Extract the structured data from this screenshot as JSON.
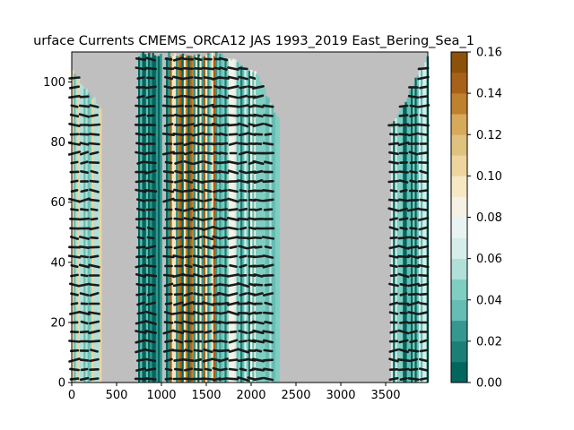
{
  "chart_data": {
    "type": "heatmap",
    "title": "urface Currents CMEMS_ORCA12 JAS 1993_2019 East_Bering_Sea_1",
    "xlabel": "",
    "ylabel": "",
    "xlim": [
      0,
      3970
    ],
    "ylim": [
      0,
      110
    ],
    "x_ticks": [
      0,
      500,
      1000,
      1500,
      2000,
      2500,
      3000,
      3500
    ],
    "y_ticks": [
      0,
      20,
      40,
      60,
      80,
      100
    ],
    "land_color": "#bfbfbf",
    "colorbar": {
      "min": 0.0,
      "max": 0.16,
      "ticks": [
        "0.00",
        "0.02",
        "0.04",
        "0.06",
        "0.08",
        "0.10",
        "0.12",
        "0.14",
        "0.16"
      ],
      "colors": [
        "#01665e",
        "#1b7f76",
        "#35978f",
        "#66bdb3",
        "#80cdc1",
        "#b1e0d9",
        "#d5eeea",
        "#e9f3f1",
        "#f5f1e4",
        "#f6e8c3",
        "#eed59f",
        "#dfc27d",
        "#d7a95b",
        "#bf812d",
        "#a76118",
        "#8c510a"
      ]
    },
    "regions": [
      {
        "x_start": 0,
        "x_end": 330,
        "top_start": 104,
        "top_end": 92,
        "color_mix": [
          3,
          4,
          5,
          10
        ]
      },
      {
        "x_start": 740,
        "x_end": 990,
        "top_start": 110,
        "top_end": 110,
        "color_mix": [
          0,
          1,
          2,
          3
        ]
      },
      {
        "x_start": 1050,
        "x_end": 1660,
        "top_start": 110,
        "top_end": 110,
        "color_mix": [
          0,
          2,
          4,
          9,
          13,
          14
        ]
      },
      {
        "x_start": 1660,
        "x_end": 2050,
        "top_start": 110,
        "top_end": 104,
        "color_mix": [
          1,
          3,
          4,
          6,
          8
        ]
      },
      {
        "x_start": 2050,
        "x_end": 2300,
        "top_start": 104,
        "top_end": 88,
        "color_mix": [
          3,
          4,
          5
        ]
      },
      {
        "x_start": 3560,
        "x_end": 3970,
        "top_start": 86,
        "top_end": 110,
        "color_mix": [
          0,
          1,
          3,
          4,
          6
        ]
      }
    ]
  }
}
